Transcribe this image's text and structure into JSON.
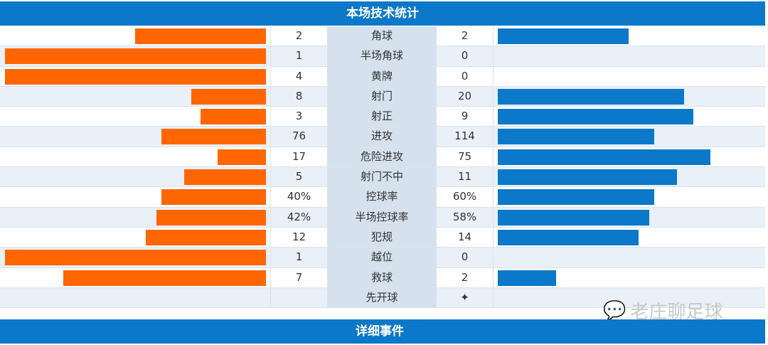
{
  "title": "本场技术统计",
  "section2": "详细事件",
  "watermark": "老庄聊足球",
  "colors": {
    "home": "#ff6600",
    "away": "#0b78c9"
  },
  "stats": [
    {
      "label": "角球",
      "home": "2",
      "away": "2",
      "h": 2,
      "a": 2
    },
    {
      "label": "半场角球",
      "home": "1",
      "away": "0",
      "h": 1,
      "a": 0
    },
    {
      "label": "黄牌",
      "home": "4",
      "away": "0",
      "h": 4,
      "a": 0
    },
    {
      "label": "射门",
      "home": "8",
      "away": "20",
      "h": 8,
      "a": 20
    },
    {
      "label": "射正",
      "home": "3",
      "away": "9",
      "h": 3,
      "a": 9
    },
    {
      "label": "进攻",
      "home": "76",
      "away": "114",
      "h": 76,
      "a": 114
    },
    {
      "label": "危险进攻",
      "home": "17",
      "away": "75",
      "h": 17,
      "a": 75
    },
    {
      "label": "射门不中",
      "home": "5",
      "away": "11",
      "h": 5,
      "a": 11
    },
    {
      "label": "控球率",
      "home": "40%",
      "away": "60%",
      "h": 40,
      "a": 60
    },
    {
      "label": "半场控球率",
      "home": "42%",
      "away": "58%",
      "h": 42,
      "a": 58
    },
    {
      "label": "犯规",
      "home": "12",
      "away": "14",
      "h": 12,
      "a": 14
    },
    {
      "label": "越位",
      "home": "1",
      "away": "0",
      "h": 1,
      "a": 0
    },
    {
      "label": "救球",
      "home": "7",
      "away": "2",
      "h": 7,
      "a": 2
    },
    {
      "label": "先开球",
      "home": "",
      "away": "✦",
      "h": 0,
      "a": 0
    }
  ]
}
